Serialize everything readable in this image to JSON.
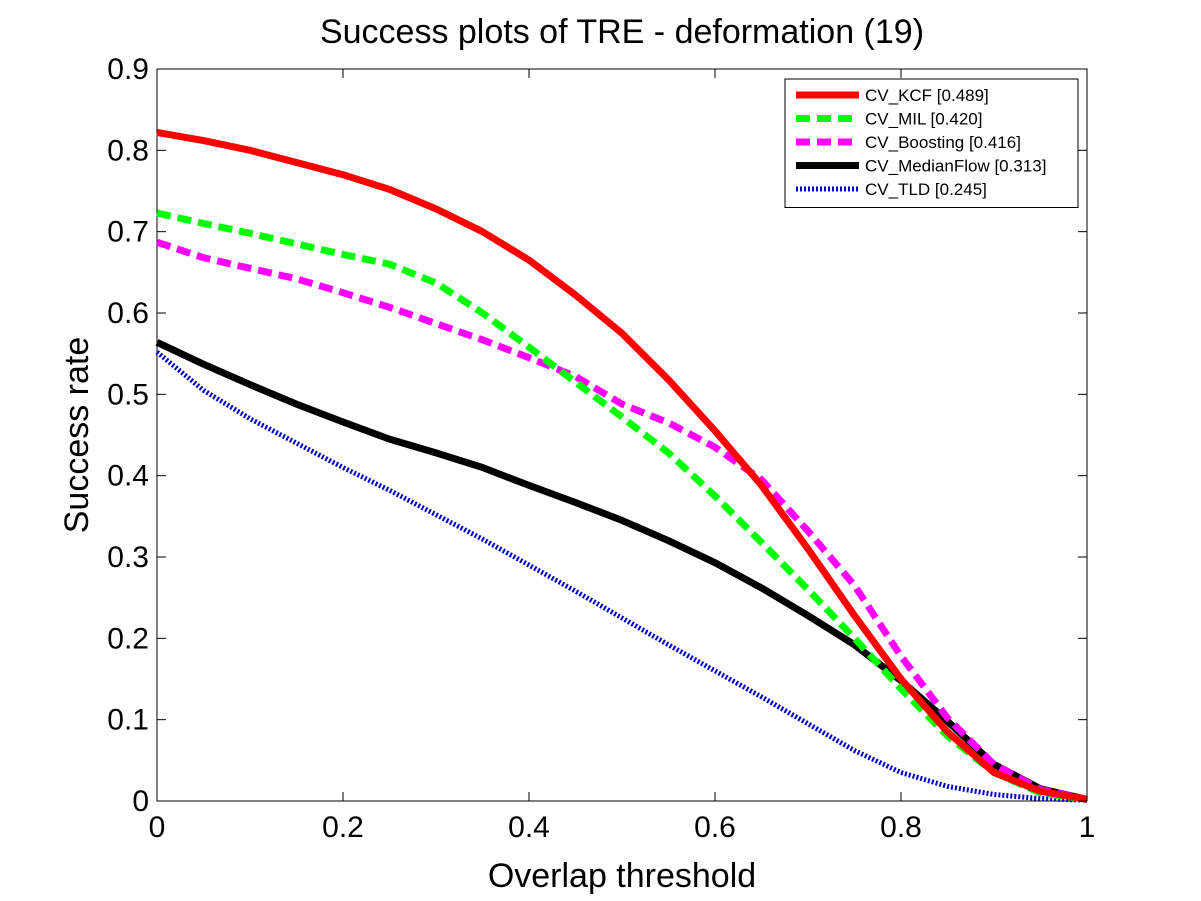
{
  "chart_data": {
    "type": "line",
    "title": "Success plots of TRE - deformation (19)",
    "xlabel": "Overlap threshold",
    "ylabel": "Success rate",
    "xlim": [
      0,
      1
    ],
    "ylim": [
      0,
      0.9
    ],
    "xticks": [
      "0",
      "0.2",
      "0.4",
      "0.6",
      "0.8",
      "1"
    ],
    "yticks": [
      "0",
      "0.1",
      "0.2",
      "0.3",
      "0.4",
      "0.5",
      "0.6",
      "0.7",
      "0.8",
      "0.9"
    ],
    "grid": false,
    "legend_position": "top-right",
    "x": [
      0,
      0.05,
      0.1,
      0.15,
      0.2,
      0.25,
      0.3,
      0.35,
      0.4,
      0.45,
      0.5,
      0.55,
      0.6,
      0.65,
      0.7,
      0.75,
      0.8,
      0.85,
      0.9,
      0.95,
      1.0
    ],
    "series": [
      {
        "name": "CV_KCF [0.489]",
        "color": "#ff0000",
        "style": "solid",
        "values": [
          0.822,
          0.812,
          0.8,
          0.785,
          0.77,
          0.752,
          0.728,
          0.7,
          0.665,
          0.622,
          0.575,
          0.518,
          0.455,
          0.388,
          0.31,
          0.228,
          0.15,
          0.085,
          0.035,
          0.012,
          0.002
        ]
      },
      {
        "name": "CV_MIL [0.420]",
        "color": "#00ff00",
        "style": "dashed",
        "values": [
          0.723,
          0.71,
          0.698,
          0.685,
          0.672,
          0.66,
          0.637,
          0.6,
          0.558,
          0.515,
          0.472,
          0.428,
          0.375,
          0.318,
          0.26,
          0.2,
          0.138,
          0.08,
          0.035,
          0.01,
          0.002
        ]
      },
      {
        "name": "CV_Boosting [0.416]",
        "color": "#ff00ff",
        "style": "dashed",
        "values": [
          0.687,
          0.668,
          0.655,
          0.642,
          0.625,
          0.607,
          0.587,
          0.567,
          0.545,
          0.522,
          0.488,
          0.465,
          0.435,
          0.395,
          0.332,
          0.265,
          0.178,
          0.102,
          0.045,
          0.014,
          0.002
        ]
      },
      {
        "name": "CV_MedianFlow [0.313]",
        "color": "#000000",
        "style": "solid",
        "values": [
          0.564,
          0.537,
          0.512,
          0.488,
          0.466,
          0.445,
          0.428,
          0.41,
          0.388,
          0.367,
          0.345,
          0.32,
          0.293,
          0.262,
          0.228,
          0.192,
          0.148,
          0.098,
          0.045,
          0.015,
          0.002
        ]
      },
      {
        "name": "CV_TLD [0.245]",
        "color": "#0000cc",
        "style": "dotted",
        "values": [
          0.552,
          0.505,
          0.47,
          0.44,
          0.41,
          0.382,
          0.352,
          0.322,
          0.29,
          0.258,
          0.225,
          0.192,
          0.16,
          0.128,
          0.095,
          0.062,
          0.035,
          0.018,
          0.008,
          0.003,
          0.001
        ]
      }
    ]
  }
}
